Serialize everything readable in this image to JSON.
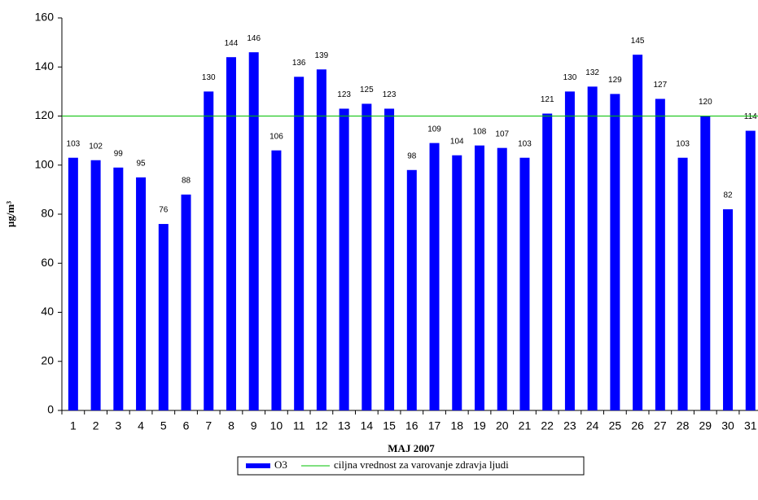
{
  "chart_data": {
    "type": "bar",
    "x_label": "MAJ 2007",
    "y_label": "µg/m³",
    "categories": [
      "1",
      "2",
      "3",
      "4",
      "5",
      "6",
      "7",
      "8",
      "9",
      "10",
      "11",
      "12",
      "13",
      "14",
      "15",
      "16",
      "17",
      "18",
      "19",
      "20",
      "21",
      "22",
      "23",
      "24",
      "25",
      "26",
      "27",
      "28",
      "29",
      "30",
      "31"
    ],
    "series": [
      {
        "name": "O3",
        "color": "#0000ff",
        "values": [
          103,
          102,
          99,
          95,
          76,
          88,
          130,
          144,
          146,
          106,
          136,
          139,
          123,
          125,
          123,
          98,
          109,
          104,
          108,
          107,
          103,
          121,
          130,
          132,
          129,
          145,
          127,
          103,
          120,
          82,
          114
        ]
      }
    ],
    "target": {
      "name": "ciljna vrednost za varovanje zdravja ljudi",
      "value": 120,
      "color": "#00c000"
    },
    "ylim": [
      0,
      160
    ],
    "yticks": [
      0,
      20,
      40,
      60,
      80,
      100,
      120,
      140,
      160
    ],
    "grid": false
  }
}
